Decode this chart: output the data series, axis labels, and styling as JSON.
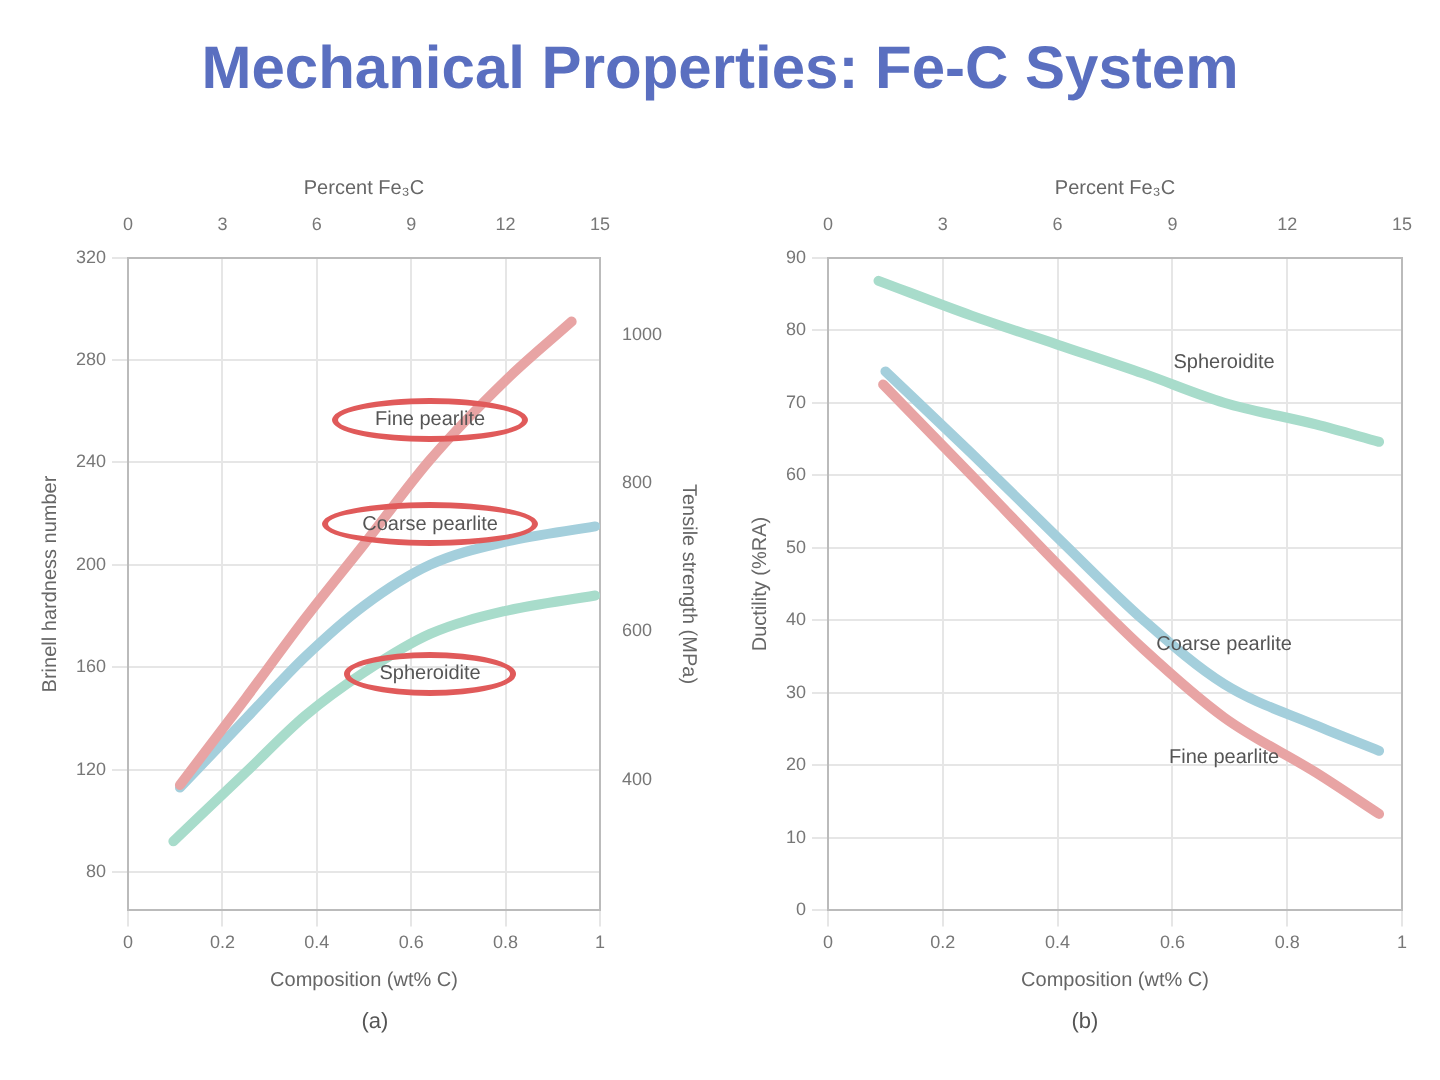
{
  "chart_data": [
    {
      "type": "line",
      "title": "Mechanical Properties:  Fe-C System",
      "xlabel": "Composition (wt% C)",
      "x2label": "Percent Fe₃C",
      "ylabel": "Brinell hardness number",
      "y2label": "Tensile strength (MPa)",
      "xlim": [
        0,
        1
      ],
      "xticks": [
        0,
        0.2,
        0.4,
        0.6,
        0.8,
        1
      ],
      "x2lim": [
        0,
        15
      ],
      "x2ticks": [
        0,
        3,
        6,
        9,
        12,
        15
      ],
      "ylim": [
        65,
        320
      ],
      "yticks": [
        80,
        120,
        160,
        200,
        240,
        280,
        320
      ],
      "y2lim": [
        224,
        1104
      ],
      "y2ticks": [
        400,
        600,
        800,
        1000
      ],
      "grid": true,
      "legend": false,
      "marker": "none",
      "series": [
        {
          "name": "Fine pearlite",
          "color": "#e8a4a4",
          "x": [
            0.11,
            0.25,
            0.375,
            0.5,
            0.64,
            0.8,
            0.94
          ],
          "values": [
            114,
            148,
            179,
            208,
            241,
            272,
            295
          ]
        },
        {
          "name": "Coarse pearlite",
          "color": "#a4cfdc",
          "x": [
            0.11,
            0.25,
            0.375,
            0.5,
            0.64,
            0.8,
            0.99
          ],
          "values": [
            113,
            140,
            164,
            184,
            200,
            209,
            215
          ]
        },
        {
          "name": "Spheroidite",
          "color": "#a8dccb",
          "x": [
            0.096,
            0.25,
            0.375,
            0.5,
            0.64,
            0.8,
            0.99
          ],
          "values": [
            92,
            119,
            141,
            158,
            173,
            182,
            188
          ]
        }
      ],
      "annotations": [
        "(a)"
      ]
    },
    {
      "type": "line",
      "xlabel": "Composition (wt% C)",
      "x2label": "Percent Fe₃C",
      "ylabel": "Ductility (%RA)",
      "xlim": [
        0,
        1
      ],
      "xticks": [
        0,
        0.2,
        0.4,
        0.6,
        0.8,
        1
      ],
      "x2lim": [
        0,
        15
      ],
      "x2ticks": [
        0,
        3,
        6,
        9,
        12,
        15
      ],
      "ylim": [
        0,
        90
      ],
      "yticks": [
        0,
        10,
        20,
        30,
        40,
        50,
        60,
        70,
        80,
        90
      ],
      "grid": true,
      "legend": false,
      "marker": "none",
      "series": [
        {
          "name": "Spheroidite",
          "color": "#a8dccb",
          "x": [
            0.088,
            0.25,
            0.4,
            0.55,
            0.69,
            0.85,
            0.96
          ],
          "values": [
            86.8,
            82,
            78,
            74,
            70,
            67,
            64.6
          ]
        },
        {
          "name": "Coarse pearlite",
          "color": "#a4cfdc",
          "x": [
            0.1,
            0.25,
            0.4,
            0.55,
            0.69,
            0.85,
            0.96
          ],
          "values": [
            74.3,
            63,
            51.4,
            40,
            31.2,
            25.5,
            22
          ]
        },
        {
          "name": "Fine pearlite",
          "color": "#e8a4a4",
          "x": [
            0.096,
            0.25,
            0.4,
            0.55,
            0.69,
            0.85,
            0.96
          ],
          "values": [
            72.5,
            60,
            47.7,
            36,
            26.6,
            19,
            13.3
          ]
        }
      ],
      "annotations": [
        "(b)"
      ]
    }
  ]
}
